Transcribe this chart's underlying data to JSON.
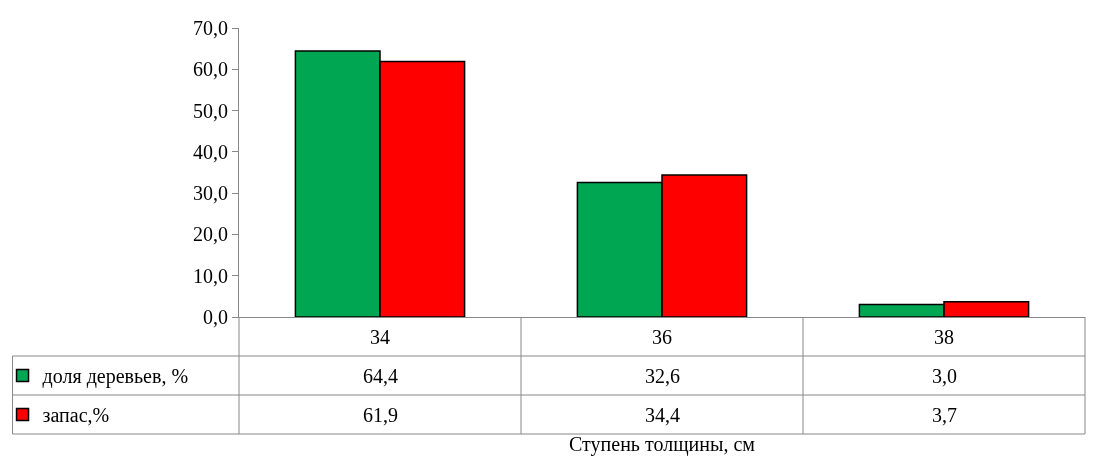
{
  "chart_data": {
    "type": "bar",
    "xlabel": "Ступень толщины, см",
    "categories": [
      "34",
      "36",
      "38"
    ],
    "series": [
      {
        "name": "доля деревьев, %",
        "color": "#00a651",
        "values": [
          64.4,
          32.6,
          3.0
        ],
        "value_labels": [
          "64,4",
          "32,6",
          "3,0"
        ]
      },
      {
        "name": "запас,%",
        "color": "#ff0000",
        "values": [
          61.9,
          34.4,
          3.7
        ],
        "value_labels": [
          "61,9",
          "34,4",
          "3,7"
        ]
      }
    ],
    "ylim": [
      0,
      70
    ],
    "yticks": [
      {
        "value": 0,
        "label": "0,0"
      },
      {
        "value": 10,
        "label": "10,0"
      },
      {
        "value": 20,
        "label": "20,0"
      },
      {
        "value": 30,
        "label": "30,0"
      },
      {
        "value": 40,
        "label": "40,0"
      },
      {
        "value": 50,
        "label": "50,0"
      },
      {
        "value": 60,
        "label": "60,0"
      },
      {
        "value": 70,
        "label": "70,0"
      }
    ],
    "grid": false,
    "legend": "bottom left"
  }
}
